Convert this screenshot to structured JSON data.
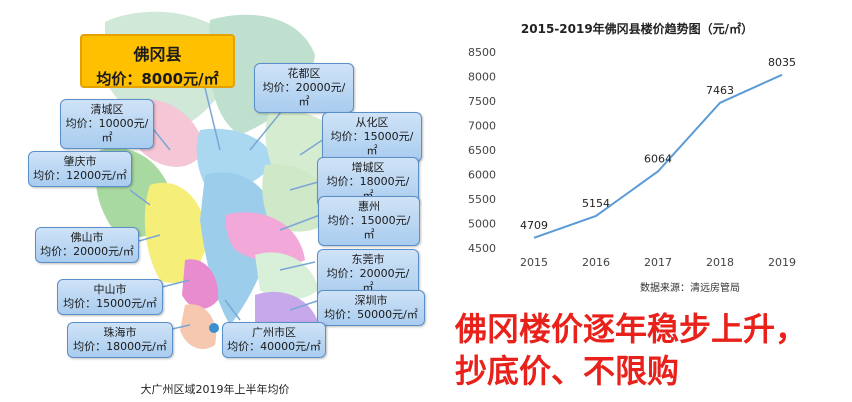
{
  "map": {
    "main": {
      "name": "佛冈县",
      "price": "均价：8000元/㎡"
    },
    "callouts": [
      {
        "id": "huadu",
        "name": "花都区",
        "price": "均价：20000元/㎡"
      },
      {
        "id": "qingcheng",
        "name": "清城区",
        "price": "均价：10000元/㎡"
      },
      {
        "id": "conghua",
        "name": "从化区",
        "price": "均价：15000元/㎡"
      },
      {
        "id": "zhaoqing",
        "name": "肇庆市",
        "price": "均价：12000元/㎡"
      },
      {
        "id": "zengcheng",
        "name": "增城区",
        "price": "均价：18000元/㎡"
      },
      {
        "id": "huizhou",
        "name": "惠州",
        "price": "均价：15000元/㎡"
      },
      {
        "id": "foshan",
        "name": "佛山市",
        "price": "均价：20000元/㎡"
      },
      {
        "id": "dongguan",
        "name": "东莞市",
        "price": "均价：20000元/㎡"
      },
      {
        "id": "zhongshan",
        "name": "中山市",
        "price": "均价：15000元/㎡"
      },
      {
        "id": "shenzhen",
        "name": "深圳市",
        "price": "均价：50000元/㎡"
      },
      {
        "id": "zhuhai",
        "name": "珠海市",
        "price": "均价：18000元/㎡"
      },
      {
        "id": "guangzhou",
        "name": "广州市区",
        "price": "均价：40000元/㎡"
      }
    ],
    "caption": "大广州区域2019年上半年均价"
  },
  "chart_data": {
    "type": "line",
    "title": "2015-2019年佛冈县楼价趋势图（元/㎡）",
    "categories": [
      "2015",
      "2016",
      "2017",
      "2018",
      "2019"
    ],
    "values": [
      4709,
      5154,
      6064,
      7463,
      8035
    ],
    "ylim": [
      4500,
      8500
    ],
    "yticks": [
      4500,
      5000,
      5500,
      6000,
      6500,
      7000,
      7500,
      8000,
      8500
    ],
    "grid": false,
    "line_color": "#5b9bd5",
    "source": "数据来源：清远房管局"
  },
  "slogan": {
    "line1": "佛冈楼价逐年稳步上升，",
    "line2": "抄底价、不限购"
  }
}
